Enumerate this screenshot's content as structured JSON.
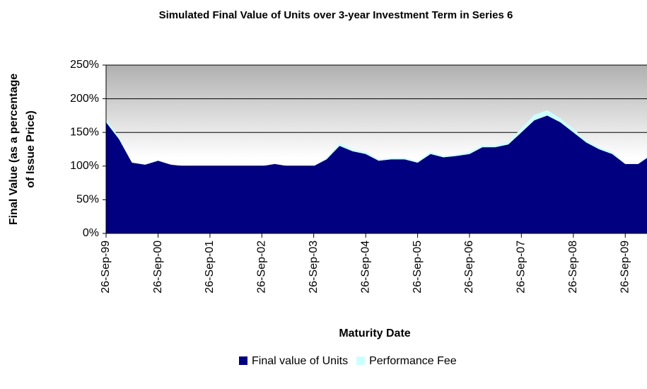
{
  "chart_data": {
    "type": "stacked_area",
    "title": "Simulated Final Value of Units over 3-year Investment Term in Series 6",
    "xlabel": "Maturity Date",
    "ylabel": [
      "Final Value (as a percentage",
      "of Issue Price)"
    ],
    "x": [
      "26-Sep-99",
      "26-Dec-99",
      "26-Mar-00",
      "26-Jun-00",
      "26-Sep-00",
      "26-Dec-00",
      "26-Mar-01",
      "26-Jun-01",
      "26-Sep-01",
      "26-Dec-01",
      "26-Mar-02",
      "26-Jun-02",
      "26-Sep-02",
      "26-Dec-02",
      "26-Mar-03",
      "26-Jun-03",
      "26-Sep-03",
      "26-Dec-03",
      "26-Mar-04",
      "26-Jun-04",
      "26-Sep-04",
      "26-Dec-04",
      "26-Mar-05",
      "26-Jun-05",
      "26-Sep-05",
      "26-Dec-05",
      "26-Mar-06",
      "26-Jun-06",
      "26-Sep-06",
      "26-Dec-06",
      "26-Mar-07",
      "26-Jun-07",
      "26-Sep-07",
      "26-Dec-07",
      "26-Mar-08",
      "26-Jun-08",
      "26-Sep-08",
      "26-Dec-08",
      "26-Mar-09",
      "26-Jun-09",
      "26-Sep-09",
      "26-Dec-09",
      "26-Feb-10"
    ],
    "series": [
      {
        "name": "Final value of Units",
        "color": "#000080",
        "values": [
          165,
          140,
          105,
          102,
          108,
          102,
          100,
          100,
          100,
          100,
          100,
          100,
          100,
          103,
          100,
          100,
          100,
          110,
          130,
          122,
          118,
          108,
          110,
          110,
          105,
          118,
          113,
          115,
          118,
          128,
          128,
          132,
          150,
          168,
          175,
          165,
          150,
          135,
          125,
          118,
          103,
          103,
          112
        ]
      },
      {
        "name": "Performance Fee",
        "color": "#ccffff",
        "values": [
          5,
          3,
          0,
          0,
          1,
          0,
          0,
          0,
          0,
          0,
          0,
          0,
          0,
          0,
          0,
          0,
          0,
          2,
          4,
          3,
          3,
          2,
          2,
          2,
          2,
          3,
          2,
          2,
          3,
          3,
          3,
          4,
          6,
          8,
          8,
          6,
          5,
          4,
          3,
          3,
          1,
          1,
          2
        ]
      }
    ],
    "xlim": [
      "26-Sep-99",
      "26-Feb-10"
    ],
    "xticks": [
      "26-Sep-99",
      "26-Sep-00",
      "26-Sep-01",
      "26-Sep-02",
      "26-Sep-03",
      "26-Sep-04",
      "26-Sep-05",
      "26-Sep-06",
      "26-Sep-07",
      "26-Sep-08",
      "26-Sep-09"
    ],
    "ylim": [
      0,
      250
    ],
    "yticks": [
      {
        "value": 0,
        "label": "0%"
      },
      {
        "value": 50,
        "label": "50%"
      },
      {
        "value": 100,
        "label": "100%"
      },
      {
        "value": 150,
        "label": "150%"
      },
      {
        "value": 200,
        "label": "200%"
      },
      {
        "value": 250,
        "label": "250%"
      }
    ],
    "grid": true
  }
}
